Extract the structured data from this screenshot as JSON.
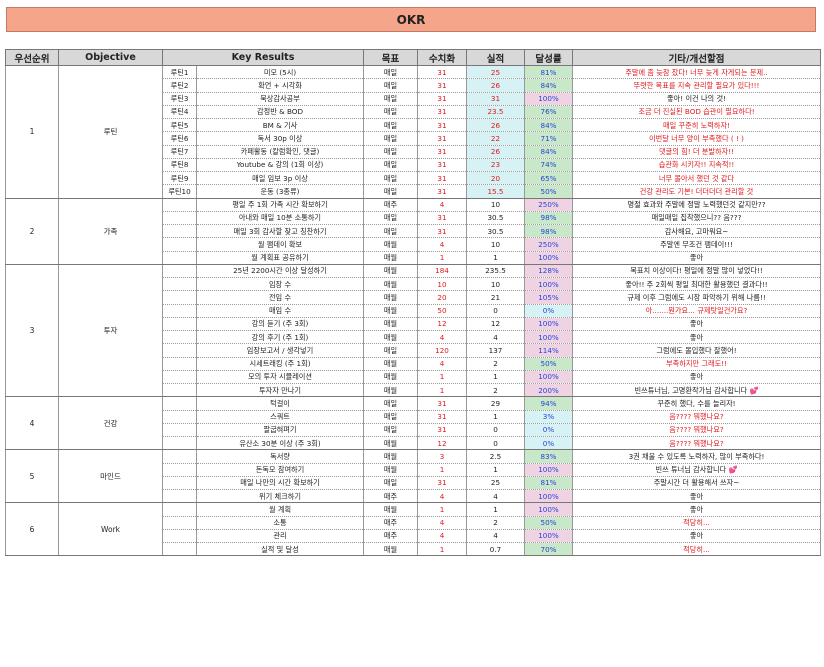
{
  "title": "OKR",
  "headers": [
    "우선순위",
    "Objective",
    "",
    "Key Results",
    "목표",
    "수치화",
    "실적",
    "달성률",
    "기타/개선할점"
  ],
  "groups": [
    {
      "priority": "1",
      "objective": "루틴",
      "rows": [
        {
          "tag": "루틴1",
          "kr": "미모 (5시)",
          "goal": "매일",
          "target": "31",
          "result": "25",
          "rate": "81%",
          "note": "주말에 좀 늦잠 잤다! 너무 늦게 자게되는 문제..",
          "result_color": "red",
          "result_bg": "cyan",
          "rate_bg": "green",
          "note_color": "red"
        },
        {
          "tag": "루틴2",
          "kr": "확언 + 시각화",
          "goal": "매일",
          "target": "31",
          "result": "26",
          "rate": "84%",
          "note": "뚜렷한 목표를 지속 관리할 필요가 있다!!!",
          "result_color": "red",
          "result_bg": "cyan",
          "rate_bg": "green",
          "note_color": "red"
        },
        {
          "tag": "루틴3",
          "kr": "묵상감사공부",
          "goal": "매일",
          "target": "31",
          "result": "31",
          "rate": "100%",
          "note": "좋아! 이건 나의 것!",
          "result_color": "red",
          "result_bg": "cyan",
          "rate_bg": "pink",
          "note_color": "black"
        },
        {
          "tag": "루틴4",
          "kr": "감정반 & BOD",
          "goal": "매일",
          "target": "31",
          "result": "23.5",
          "rate": "76%",
          "note": "조금 더 진실된 BOD 습관이 필요하다!",
          "result_color": "red",
          "result_bg": "cyan",
          "rate_bg": "green",
          "note_color": "red"
        },
        {
          "tag": "루틴5",
          "kr": "BM & 기사",
          "goal": "매일",
          "target": "31",
          "result": "26",
          "rate": "84%",
          "note": "매일 꾸준히 노력하자!",
          "result_color": "red",
          "result_bg": "cyan",
          "rate_bg": "green",
          "note_color": "red"
        },
        {
          "tag": "루틴6",
          "kr": "독서 30p 이상",
          "goal": "매일",
          "target": "31",
          "result": "22",
          "rate": "71%",
          "note": "이번달 너무 양이 부족했다 ( ! )",
          "result_color": "red",
          "result_bg": "cyan",
          "rate_bg": "green",
          "note_color": "red"
        },
        {
          "tag": "루틴7",
          "kr": "카페활동 (칼럼확인, 댓글)",
          "goal": "매일",
          "target": "31",
          "result": "26",
          "rate": "84%",
          "note": "댓글의 힘! 더 분발하자!!",
          "result_color": "red",
          "result_bg": "cyan",
          "rate_bg": "green",
          "note_color": "red"
        },
        {
          "tag": "루틴8",
          "kr": "Youtube & 강의 (1회 이상)",
          "goal": "매일",
          "target": "31",
          "result": "23",
          "rate": "74%",
          "note": "습관화 시키자!! 지속적!!",
          "result_color": "red",
          "result_bg": "cyan",
          "rate_bg": "green",
          "note_color": "red"
        },
        {
          "tag": "루틴9",
          "kr": "매일 임보 3p 이상",
          "goal": "매일",
          "target": "31",
          "result": "20",
          "rate": "65%",
          "note": "너무 몰아서 했던 것 같다",
          "result_color": "red",
          "result_bg": "cyan",
          "rate_bg": "green",
          "note_color": "red"
        },
        {
          "tag": "루틴10",
          "kr": "운동 (3종류)",
          "goal": "매일",
          "target": "31",
          "result": "15.5",
          "rate": "50%",
          "note": "건강 관리도 기본! 더더더더 관리할 것",
          "result_color": "red",
          "result_bg": "cyan",
          "rate_bg": "green",
          "note_color": "red"
        }
      ]
    },
    {
      "priority": "2",
      "objective": "가족",
      "rows": [
        {
          "tag": "",
          "kr": "평일 주 1회 가족 시간 확보하기",
          "goal": "매주",
          "target": "4",
          "result": "10",
          "rate": "250%",
          "note": "명절 효과와 주말에 정말 노력했던것 같지만??",
          "result_color": "black",
          "result_bg": "none",
          "rate_bg": "pink",
          "note_color": "black"
        },
        {
          "tag": "",
          "kr": "아내와 매일 10분 소통하기",
          "goal": "매일",
          "target": "31",
          "result": "30.5",
          "rate": "98%",
          "note": "매일매일 집착했으니?? 음???",
          "result_color": "black",
          "result_bg": "none",
          "rate_bg": "green",
          "note_color": "black"
        },
        {
          "tag": "",
          "kr": "매일 3회 감사할 찾고 칭찬하기",
          "goal": "매일",
          "target": "31",
          "result": "30.5",
          "rate": "98%",
          "note": "감사해요, 고마워요~",
          "result_color": "black",
          "result_bg": "none",
          "rate_bg": "green",
          "note_color": "black"
        },
        {
          "tag": "",
          "kr": "월 팸데이 확보",
          "goal": "매월",
          "target": "4",
          "result": "10",
          "rate": "250%",
          "note": "주말엔 무조건 팸데이!!!",
          "result_color": "black",
          "result_bg": "none",
          "rate_bg": "pink",
          "note_color": "black"
        },
        {
          "tag": "",
          "kr": "월 계획표 공유하기",
          "goal": "매월",
          "target": "1",
          "result": "1",
          "rate": "100%",
          "note": "좋아",
          "result_color": "black",
          "result_bg": "none",
          "rate_bg": "pink",
          "note_color": "black"
        }
      ]
    },
    {
      "priority": "3",
      "objective": "투자",
      "rows": [
        {
          "tag": "",
          "kr": "25년 2200시간 이상 달성하기",
          "goal": "매월",
          "target": "184",
          "result": "235.5",
          "rate": "128%",
          "note": "목표치 이상이다! 평일에 정말 많이 넣었다!!",
          "result_color": "black",
          "result_bg": "none",
          "rate_bg": "pink",
          "note_color": "black"
        },
        {
          "tag": "",
          "kr": "임장 수",
          "goal": "매월",
          "target": "10",
          "result": "10",
          "rate": "100%",
          "note": "좋아!! 주 2회씩 평일 최대한 활용했던 결과다!!",
          "result_color": "black",
          "result_bg": "none",
          "rate_bg": "pink",
          "note_color": "black"
        },
        {
          "tag": "",
          "kr": "전임 수",
          "goal": "매월",
          "target": "20",
          "result": "21",
          "rate": "105%",
          "note": "규제 이후 그럼에도 시장 파악하기 위해 나름!!",
          "result_color": "black",
          "result_bg": "none",
          "rate_bg": "pink",
          "note_color": "black"
        },
        {
          "tag": "",
          "kr": "매임 수",
          "goal": "매월",
          "target": "50",
          "result": "0",
          "rate": "0%",
          "note": "아.......뭔가요... 규제탓일건가요?",
          "result_color": "black",
          "result_bg": "none",
          "rate_bg": "cyan",
          "note_color": "red"
        },
        {
          "tag": "",
          "kr": "강의 듣기 (주 3회)",
          "goal": "매월",
          "target": "12",
          "result": "12",
          "rate": "100%",
          "note": "좋아",
          "result_color": "black",
          "result_bg": "none",
          "rate_bg": "pink",
          "note_color": "black"
        },
        {
          "tag": "",
          "kr": "강의 후기 (주 1회)",
          "goal": "매월",
          "target": "4",
          "result": "4",
          "rate": "100%",
          "note": "좋아",
          "result_color": "black",
          "result_bg": "none",
          "rate_bg": "pink",
          "note_color": "black"
        },
        {
          "tag": "",
          "kr": "임장보고서 / 생각넣기",
          "goal": "매일",
          "target": "120",
          "result": "137",
          "rate": "114%",
          "note": "그럼에도 몰입했다 잘했어!",
          "result_color": "black",
          "result_bg": "none",
          "rate_bg": "pink",
          "note_color": "black"
        },
        {
          "tag": "",
          "kr": "시세트래킹 (주 1회)",
          "goal": "매월",
          "target": "4",
          "result": "2",
          "rate": "50%",
          "note": "부족하지만 그래도!!",
          "result_color": "black",
          "result_bg": "none",
          "rate_bg": "green",
          "note_color": "red"
        },
        {
          "tag": "",
          "kr": "모의 투자 시뮬레이션",
          "goal": "매월",
          "target": "1",
          "result": "1",
          "rate": "100%",
          "note": "좋아",
          "result_color": "black",
          "result_bg": "none",
          "rate_bg": "pink",
          "note_color": "black"
        },
        {
          "tag": "",
          "kr": "투자자 만나기",
          "goal": "매월",
          "target": "1",
          "result": "2",
          "rate": "200%",
          "note": "빈쓰튜너님, 고명환작가님 감사합니다 💕",
          "result_color": "black",
          "result_bg": "none",
          "rate_bg": "pink",
          "note_color": "black"
        }
      ]
    },
    {
      "priority": "4",
      "objective": "건강",
      "rows": [
        {
          "tag": "",
          "kr": "턱걸이",
          "goal": "매일",
          "target": "31",
          "result": "29",
          "rate": "94%",
          "note": "꾸준히 했다, 수를 늘리자!",
          "result_color": "black",
          "result_bg": "none",
          "rate_bg": "green",
          "note_color": "black"
        },
        {
          "tag": "",
          "kr": "스쿼트",
          "goal": "매일",
          "target": "31",
          "result": "1",
          "rate": "3%",
          "note": "음???? 뭐했나요?",
          "result_color": "black",
          "result_bg": "none",
          "rate_bg": "cyan",
          "note_color": "red"
        },
        {
          "tag": "",
          "kr": "팔굽혀펴기",
          "goal": "매일",
          "target": "31",
          "result": "0",
          "rate": "0%",
          "note": "음???? 뭐했나요?",
          "result_color": "black",
          "result_bg": "none",
          "rate_bg": "cyan",
          "note_color": "red"
        },
        {
          "tag": "",
          "kr": "유산소 30분 이상 (주 3회)",
          "goal": "매월",
          "target": "12",
          "result": "0",
          "rate": "0%",
          "note": "음???? 뭐했나요?",
          "result_color": "black",
          "result_bg": "none",
          "rate_bg": "cyan",
          "note_color": "red"
        }
      ]
    },
    {
      "priority": "5",
      "objective": "마인드",
      "rows": [
        {
          "tag": "",
          "kr": "독서량",
          "goal": "매월",
          "target": "3",
          "result": "2.5",
          "rate": "83%",
          "note": "3권 채울 수 있도록 노력하자, 많이 부족하다!",
          "result_color": "black",
          "result_bg": "none",
          "rate_bg": "green",
          "note_color": "black"
        },
        {
          "tag": "",
          "kr": "돈독모 참여하기",
          "goal": "매월",
          "target": "1",
          "result": "1",
          "rate": "100%",
          "note": "빈쓰 튜너님 감사합니다 💕",
          "result_color": "black",
          "result_bg": "none",
          "rate_bg": "pink",
          "note_color": "black"
        },
        {
          "tag": "",
          "kr": "매일 나만의 시간 확보하기",
          "goal": "매일",
          "target": "31",
          "result": "25",
          "rate": "81%",
          "note": "주말시간 더 활용해서 쓰자~",
          "result_color": "black",
          "result_bg": "none",
          "rate_bg": "green",
          "note_color": "black"
        },
        {
          "tag": "",
          "kr": "위기 체크하기",
          "goal": "매주",
          "target": "4",
          "result": "4",
          "rate": "100%",
          "note": "좋아",
          "result_color": "black",
          "result_bg": "none",
          "rate_bg": "pink",
          "note_color": "black"
        }
      ]
    },
    {
      "priority": "6",
      "objective": "Work",
      "rows": [
        {
          "tag": "",
          "kr": "월 계획",
          "goal": "매월",
          "target": "1",
          "result": "1",
          "rate": "100%",
          "note": "좋아",
          "result_color": "black",
          "result_bg": "none",
          "rate_bg": "pink",
          "note_color": "black"
        },
        {
          "tag": "",
          "kr": "소통",
          "goal": "매주",
          "target": "4",
          "result": "2",
          "rate": "50%",
          "note": "적당히...",
          "result_color": "black",
          "result_bg": "none",
          "rate_bg": "green",
          "note_color": "red"
        },
        {
          "tag": "",
          "kr": "관리",
          "goal": "매주",
          "target": "4",
          "result": "4",
          "rate": "100%",
          "note": "좋아",
          "result_color": "black",
          "result_bg": "none",
          "rate_bg": "pink",
          "note_color": "black"
        },
        {
          "tag": "",
          "kr": "실적 및 달성",
          "goal": "매월",
          "target": "1",
          "result": "0.7",
          "rate": "70%",
          "note": "적당히...",
          "result_color": "black",
          "result_bg": "none",
          "rate_bg": "green",
          "note_color": "red"
        }
      ]
    }
  ]
}
